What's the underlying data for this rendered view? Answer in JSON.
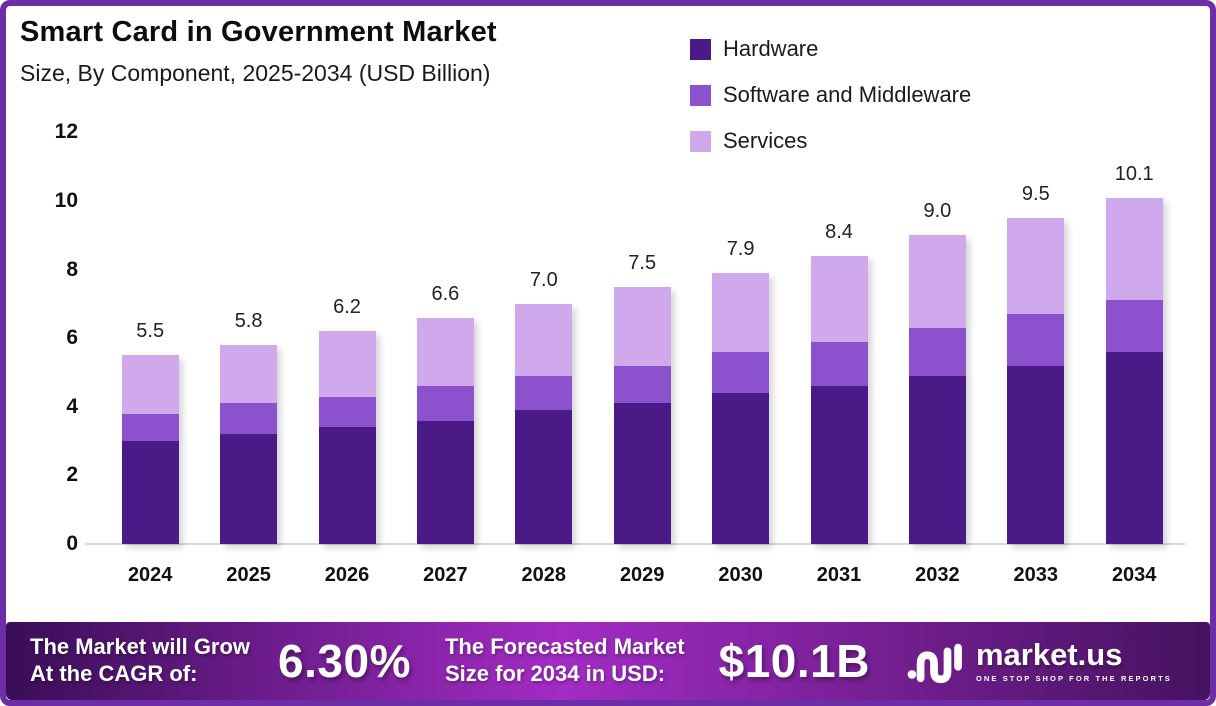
{
  "header": {
    "title": "Smart Card in Government Market",
    "subtitle": "Size, By Component, 2025-2034 (USD Billion)"
  },
  "chart_data": {
    "type": "bar",
    "stacked": true,
    "title": "Smart Card in Government Market Size, By Component, 2025-2034 (USD Billion)",
    "categories": [
      "2024",
      "2025",
      "2026",
      "2027",
      "2028",
      "2029",
      "2030",
      "2031",
      "2032",
      "2033",
      "2034"
    ],
    "series": [
      {
        "name": "Hardware",
        "color": "#4A1B87",
        "values": [
          3.0,
          3.2,
          3.4,
          3.6,
          3.9,
          4.1,
          4.4,
          4.6,
          4.9,
          5.2,
          5.6
        ]
      },
      {
        "name": "Software and Middleware",
        "color": "#8C52CE",
        "values": [
          0.8,
          0.9,
          0.9,
          1.0,
          1.0,
          1.1,
          1.2,
          1.3,
          1.4,
          1.5,
          1.5
        ]
      },
      {
        "name": "Services",
        "color": "#CFA9EC",
        "values": [
          1.7,
          1.7,
          1.9,
          2.0,
          2.1,
          2.3,
          2.3,
          2.5,
          2.7,
          2.8,
          3.0
        ]
      }
    ],
    "totals": [
      "5.5",
      "5.8",
      "6.2",
      "6.6",
      "7.0",
      "7.5",
      "7.9",
      "8.4",
      "9.0",
      "9.5",
      "10.1"
    ],
    "yticks": [
      0,
      2,
      4,
      6,
      8,
      10,
      12
    ],
    "ylim": [
      0,
      12
    ],
    "grid": false,
    "legend_position": "top-right"
  },
  "banner": {
    "cagr_label_line1": "The Market will Grow",
    "cagr_label_line2": "At the CAGR of:",
    "cagr_value": "6.30%",
    "forecast_label_line1": "The Forecasted Market",
    "forecast_label_line2": "Size for 2034 in USD:",
    "forecast_value": "$10.1B",
    "brand": {
      "name": "market.us",
      "tagline": "ONE STOP SHOP FOR THE REPORTS"
    }
  },
  "colors": {
    "frame_border": "#6C2DA7",
    "banner_gradient": [
      "#3A0E57",
      "#A32CC4",
      "#45125F"
    ],
    "axis_line": "#D9D9D9"
  }
}
